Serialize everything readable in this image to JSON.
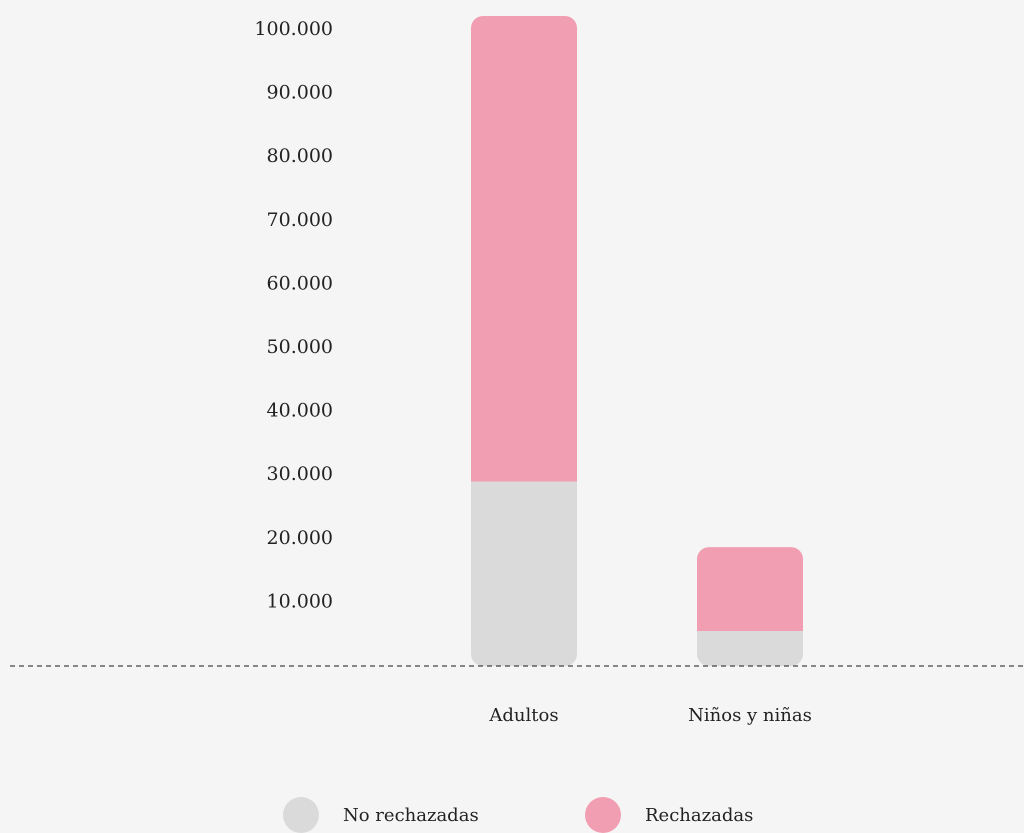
{
  "chart_data": {
    "type": "bar",
    "stacked": true,
    "categories": [
      "Adultos",
      "Niños y niñas"
    ],
    "series": [
      {
        "name": "No rechazadas",
        "color": "#dadada",
        "values": [
          29000,
          5500
        ]
      },
      {
        "name": "Rechazadas",
        "color": "#f29eb2",
        "values": [
          73200,
          13200
        ]
      }
    ],
    "y_ticks": [
      "10.000",
      "20.000",
      "30.000",
      "40.000",
      "50.000",
      "60.000",
      "70.000",
      "80.000",
      "90.000",
      "100.000"
    ],
    "y_tick_values": [
      10000,
      20000,
      30000,
      40000,
      50000,
      60000,
      70000,
      80000,
      90000,
      100000
    ],
    "ylim": [
      0,
      102000
    ],
    "baseline_style": "dashed",
    "grid": false,
    "legend_position": "bottom",
    "title": "",
    "xlabel": "",
    "ylabel": ""
  }
}
